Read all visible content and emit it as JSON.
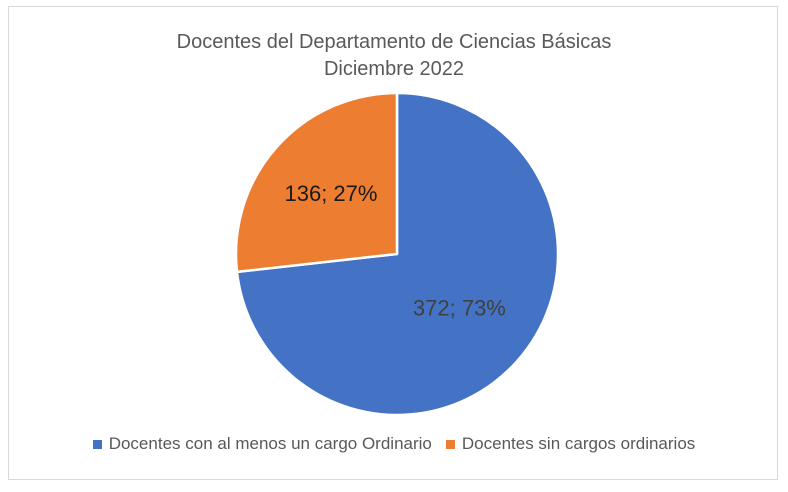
{
  "chart_data": {
    "type": "pie",
    "title": [
      "Docentes del Departamento de Ciencias Básicas",
      "Diciembre 2022"
    ],
    "categories": [
      "Docentes con al menos un cargo Ordinario",
      "Docentes sin cargos ordinarios"
    ],
    "values": [
      372,
      136
    ],
    "percentages": [
      73,
      27
    ],
    "data_labels": [
      "372; 73%",
      "136; 27%"
    ],
    "colors": [
      "#4472c4",
      "#ed7d31"
    ],
    "legend_position": "bottom"
  }
}
